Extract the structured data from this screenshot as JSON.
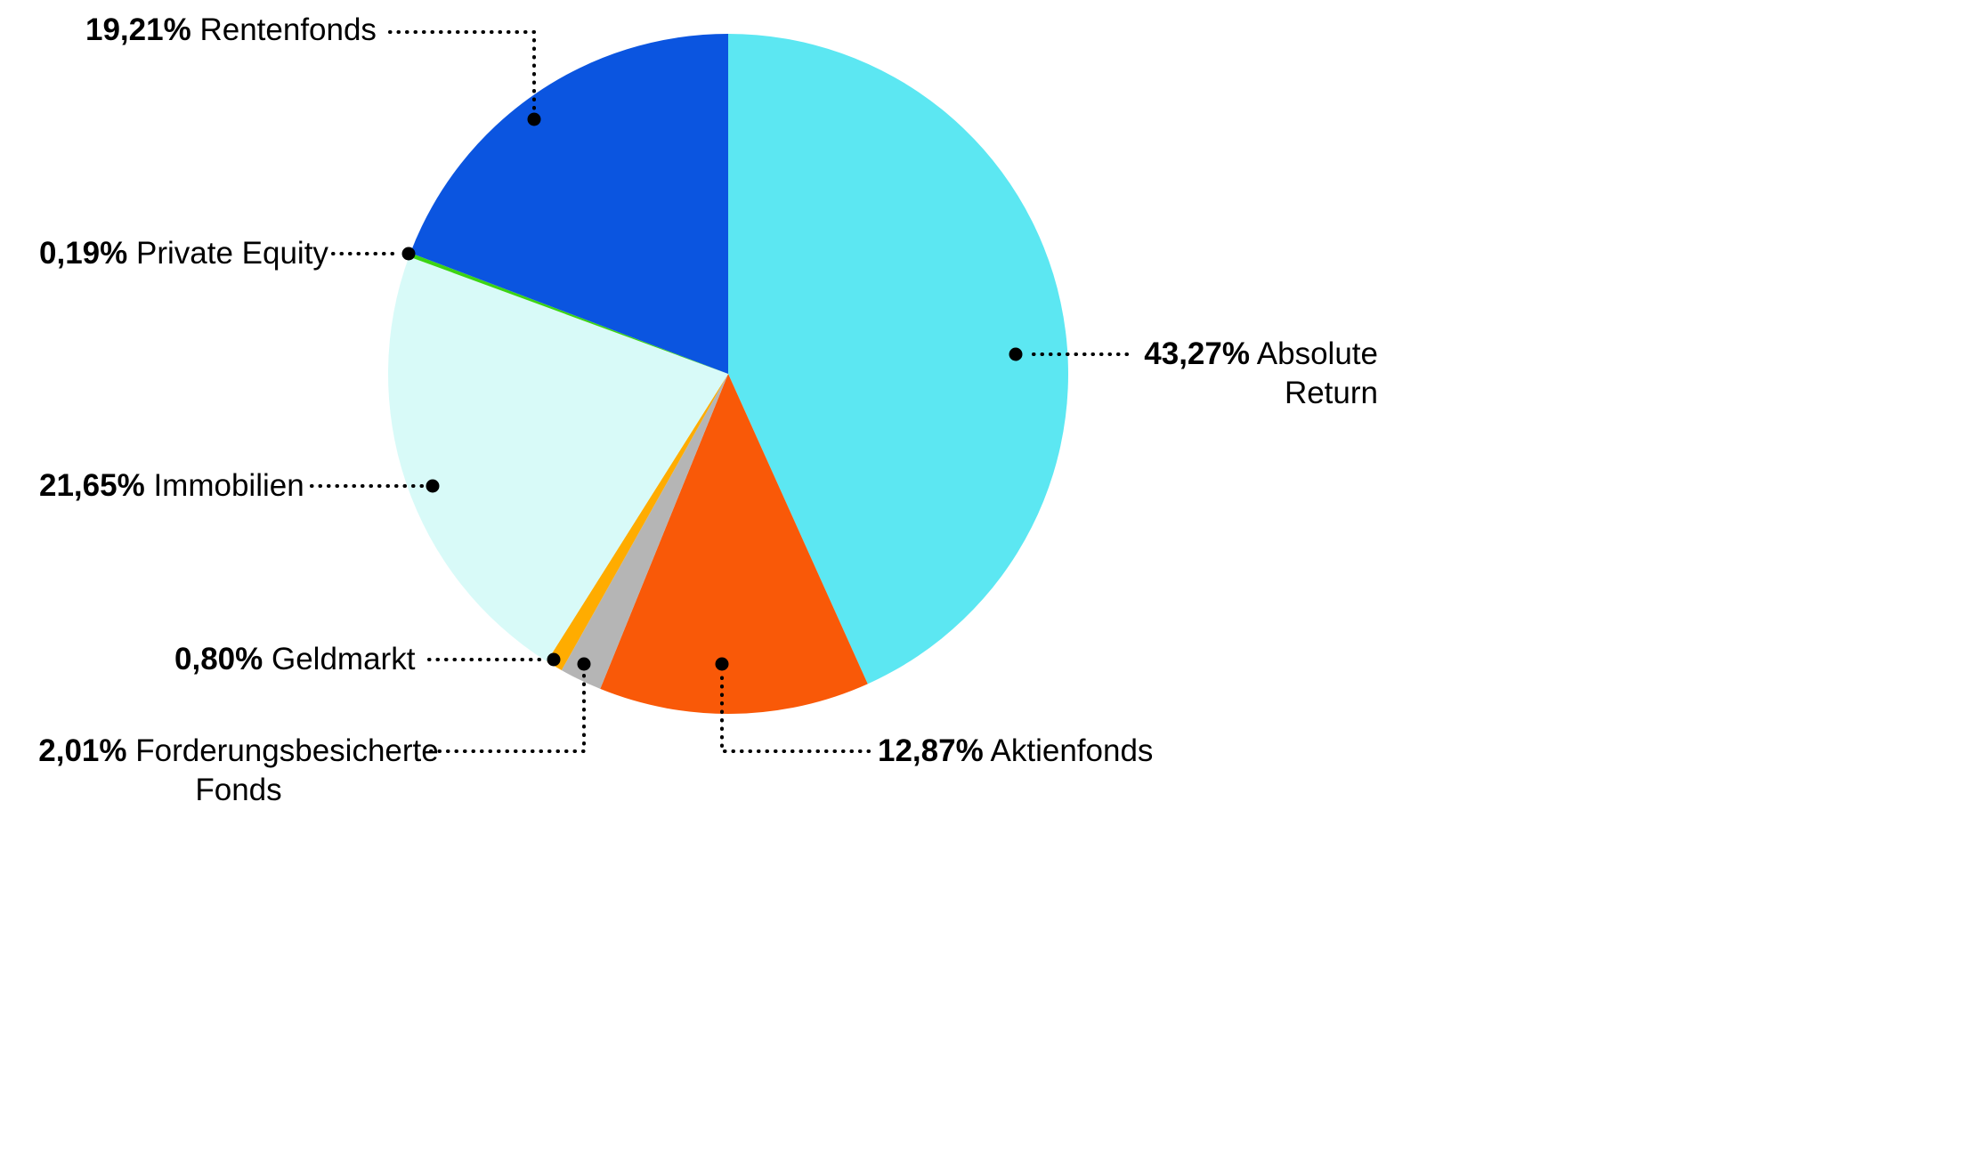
{
  "figure": {
    "background_color": "#FFFFFF",
    "text_color": "#000000"
  },
  "chart_data": {
    "type": "pie",
    "title": "",
    "direction": "clockwise",
    "start_angle_deg": 0,
    "total": 100.0,
    "units": "%",
    "legend_position": "callout-labels",
    "callout_line_color": "#000000",
    "callout_dot_color": "#000000",
    "slices": [
      {
        "label": "Absolute Return",
        "pct_label": "43,27%",
        "value": 43.27,
        "color": "#5CE7F2"
      },
      {
        "label": "Aktienfonds",
        "pct_label": "12,87%",
        "value": 12.87,
        "color": "#F95908"
      },
      {
        "label": "Forderungsbesicherte Fonds",
        "pct_label": "2,01%",
        "value": 2.01,
        "color": "#B5B5B5"
      },
      {
        "label": "Geldmarkt",
        "pct_label": "0,80%",
        "value": 0.8,
        "color": "#FFAC00"
      },
      {
        "label": "Immobilien",
        "pct_label": "21,65%",
        "value": 21.65,
        "color": "#D8FAF8"
      },
      {
        "label": "Private Equity",
        "pct_label": "0,19%",
        "value": 0.19,
        "color": "#3CD414"
      },
      {
        "label": "Rentenfonds",
        "pct_label": "19,21%",
        "value": 19.21,
        "color": "#0B55E0"
      }
    ]
  }
}
